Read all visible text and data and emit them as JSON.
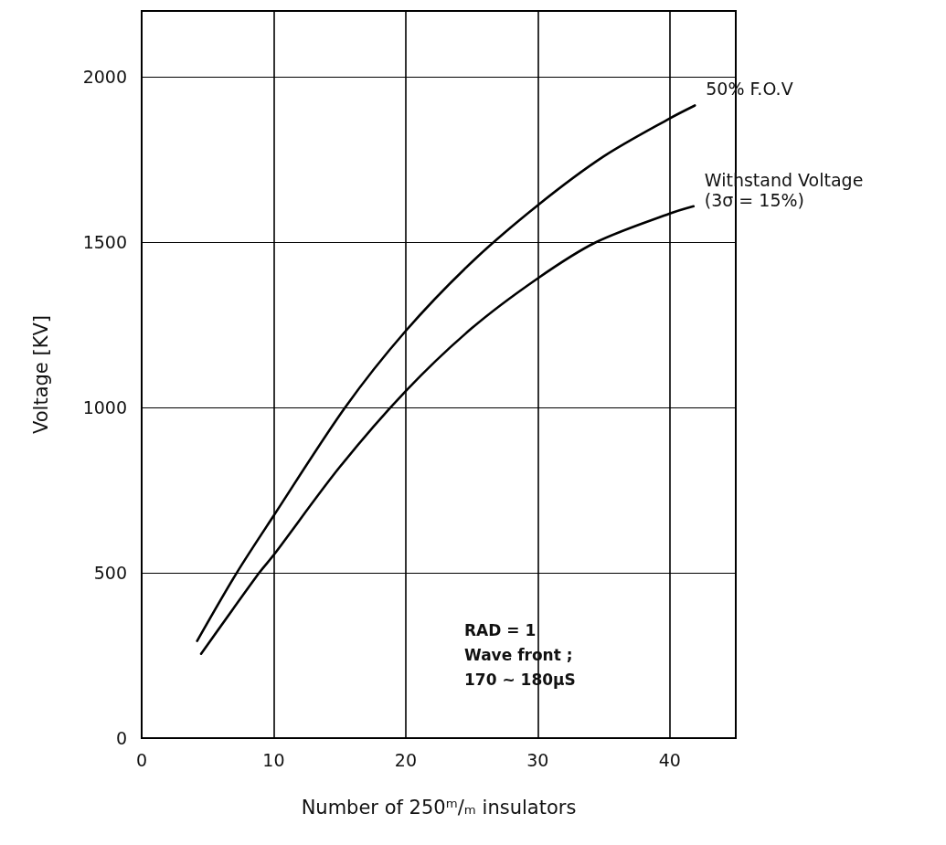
{
  "chart_data": {
    "type": "line",
    "xlabel": "Number of 250ᵐ/ₘ insulators",
    "ylabel": "Voltage [KV]",
    "series": [
      {
        "name": "50% F.O.V",
        "color": "#000000",
        "x": [
          4.2,
          7.2,
          10,
          15.4,
          20,
          25,
          30,
          35,
          40,
          41.9
        ],
        "values": [
          294,
          500,
          673,
          1000,
          1232,
          1440,
          1612,
          1760,
          1875,
          1914
        ]
      },
      {
        "name": "Withstand Voltage (3σ = 15%)",
        "color": "#000000",
        "x": [
          4.5,
          8.9,
          10,
          15,
          20,
          25,
          30,
          34.4,
          40,
          41.8
        ],
        "values": [
          255,
          500,
          554,
          820,
          1050,
          1240,
          1391,
          1500,
          1587,
          1609
        ]
      }
    ],
    "xlim": [
      0,
      45
    ],
    "xticks": [
      0,
      10,
      20,
      30,
      40
    ],
    "ylim": [
      0,
      2200
    ],
    "yticks": [
      0,
      500,
      1000,
      1500,
      2000
    ],
    "grid": true,
    "legend": false,
    "marker": "none",
    "line_style": "solid",
    "annotations": [
      "RAD = 1\nWave front ;\n170 ~ 180µS"
    ]
  }
}
